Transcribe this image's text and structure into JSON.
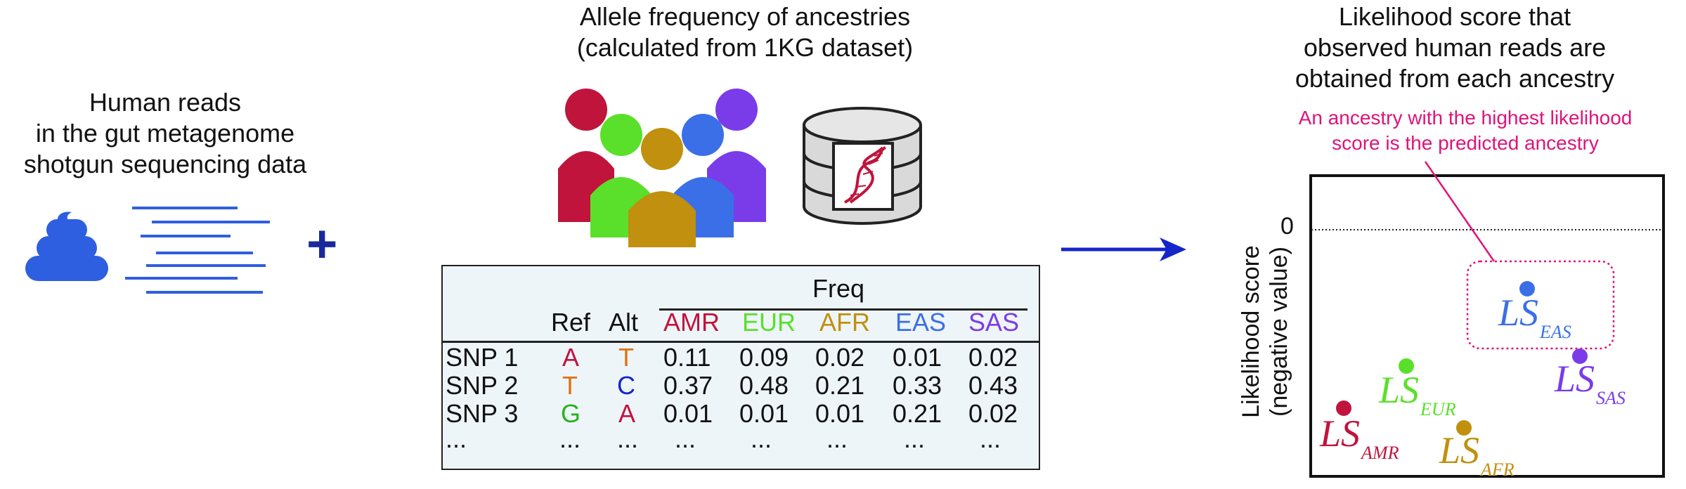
{
  "colors": {
    "amr": "#c0143c",
    "eur": "#5ae02a",
    "afr": "#c0900e",
    "eas": "#3b6fe8",
    "sas": "#7a3ce8",
    "reads": "#2e5fe0",
    "arrow": "#1426c8",
    "plus": "#1a2a9a",
    "annotation": "#e0137a"
  },
  "left": {
    "title_lines": [
      "Human reads",
      "in the gut metagenome",
      "shotgun sequencing data"
    ],
    "feces_icon": "feces-icon",
    "reads_icon": "sequencing-reads-icon",
    "plus": "+"
  },
  "middle": {
    "title_lines": [
      "Allele frequency of ancestries",
      "(calculated from 1KG dataset)"
    ],
    "people_icon": "population-people-icon",
    "database_icon": "dna-database-icon",
    "table": {
      "freq_header": "Freq",
      "ref_header": "Ref",
      "alt_header": "Alt",
      "ancestries": [
        "AMR",
        "EUR",
        "AFR",
        "EAS",
        "SAS"
      ],
      "rows": [
        {
          "snp": "SNP 1",
          "ref": "A",
          "alt": "T",
          "values": [
            "0.11",
            "0.09",
            "0.02",
            "0.01",
            "0.02"
          ]
        },
        {
          "snp": "SNP 2",
          "ref": "T",
          "alt": "C",
          "values": [
            "0.37",
            "0.48",
            "0.21",
            "0.33",
            "0.43"
          ]
        },
        {
          "snp": "SNP 3",
          "ref": "G",
          "alt": "A",
          "values": [
            "0.01",
            "0.01",
            "0.01",
            "0.21",
            "0.02"
          ]
        },
        {
          "snp": "...",
          "ref": "...",
          "alt": "...",
          "values": [
            "...",
            "...",
            "...",
            "...",
            "..."
          ]
        }
      ]
    }
  },
  "right": {
    "title_lines": [
      "Likelihood score that",
      "observed human reads are",
      "obtained from each ancestry"
    ],
    "annotation_lines": [
      "An ancestry with the highest likelihood",
      "score is the predicted ancestry"
    ],
    "y_axis_lines": [
      "Likelihood score",
      "(negative value)"
    ],
    "zero_label": "0",
    "scores": [
      {
        "base": "LS",
        "sub": "AMR"
      },
      {
        "base": "LS",
        "sub": "EUR"
      },
      {
        "base": "LS",
        "sub": "AFR"
      },
      {
        "base": "LS",
        "sub": "EAS"
      },
      {
        "base": "LS",
        "sub": "SAS"
      }
    ]
  }
}
